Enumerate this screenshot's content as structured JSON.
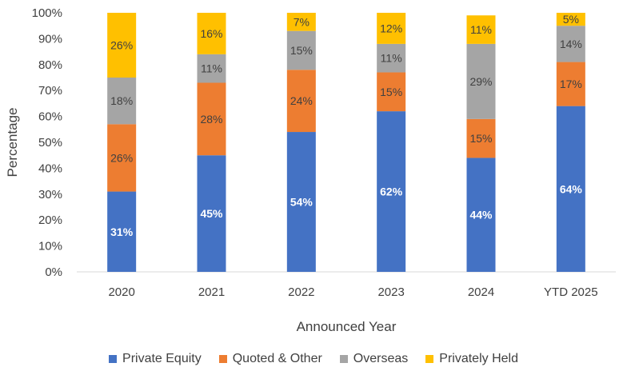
{
  "chart_data": {
    "type": "bar",
    "stacked": true,
    "categories": [
      "2020",
      "2021",
      "2022",
      "2023",
      "2024",
      "YTD 2025"
    ],
    "series": [
      {
        "name": "Private Equity",
        "color": "#4472C4",
        "values": [
          31,
          45,
          54,
          62,
          44,
          64
        ]
      },
      {
        "name": "Quoted & Other",
        "color": "#ED7D31",
        "values": [
          26,
          28,
          24,
          15,
          15,
          17
        ]
      },
      {
        "name": "Overseas",
        "color": "#A5A5A5",
        "values": [
          18,
          11,
          15,
          11,
          29,
          14
        ]
      },
      {
        "name": "Privately Held",
        "color": "#FFC000",
        "values": [
          26,
          16,
          7,
          12,
          11,
          5
        ]
      }
    ],
    "xlabel": "Announced Year",
    "ylabel": "Percentage",
    "ylim": [
      0,
      100
    ],
    "yticks": [
      "0%",
      "10%",
      "20%",
      "30%",
      "40%",
      "50%",
      "60%",
      "70%",
      "80%",
      "90%",
      "100%"
    ],
    "value_suffix": "%",
    "legend_position": "bottom",
    "grid": false
  }
}
